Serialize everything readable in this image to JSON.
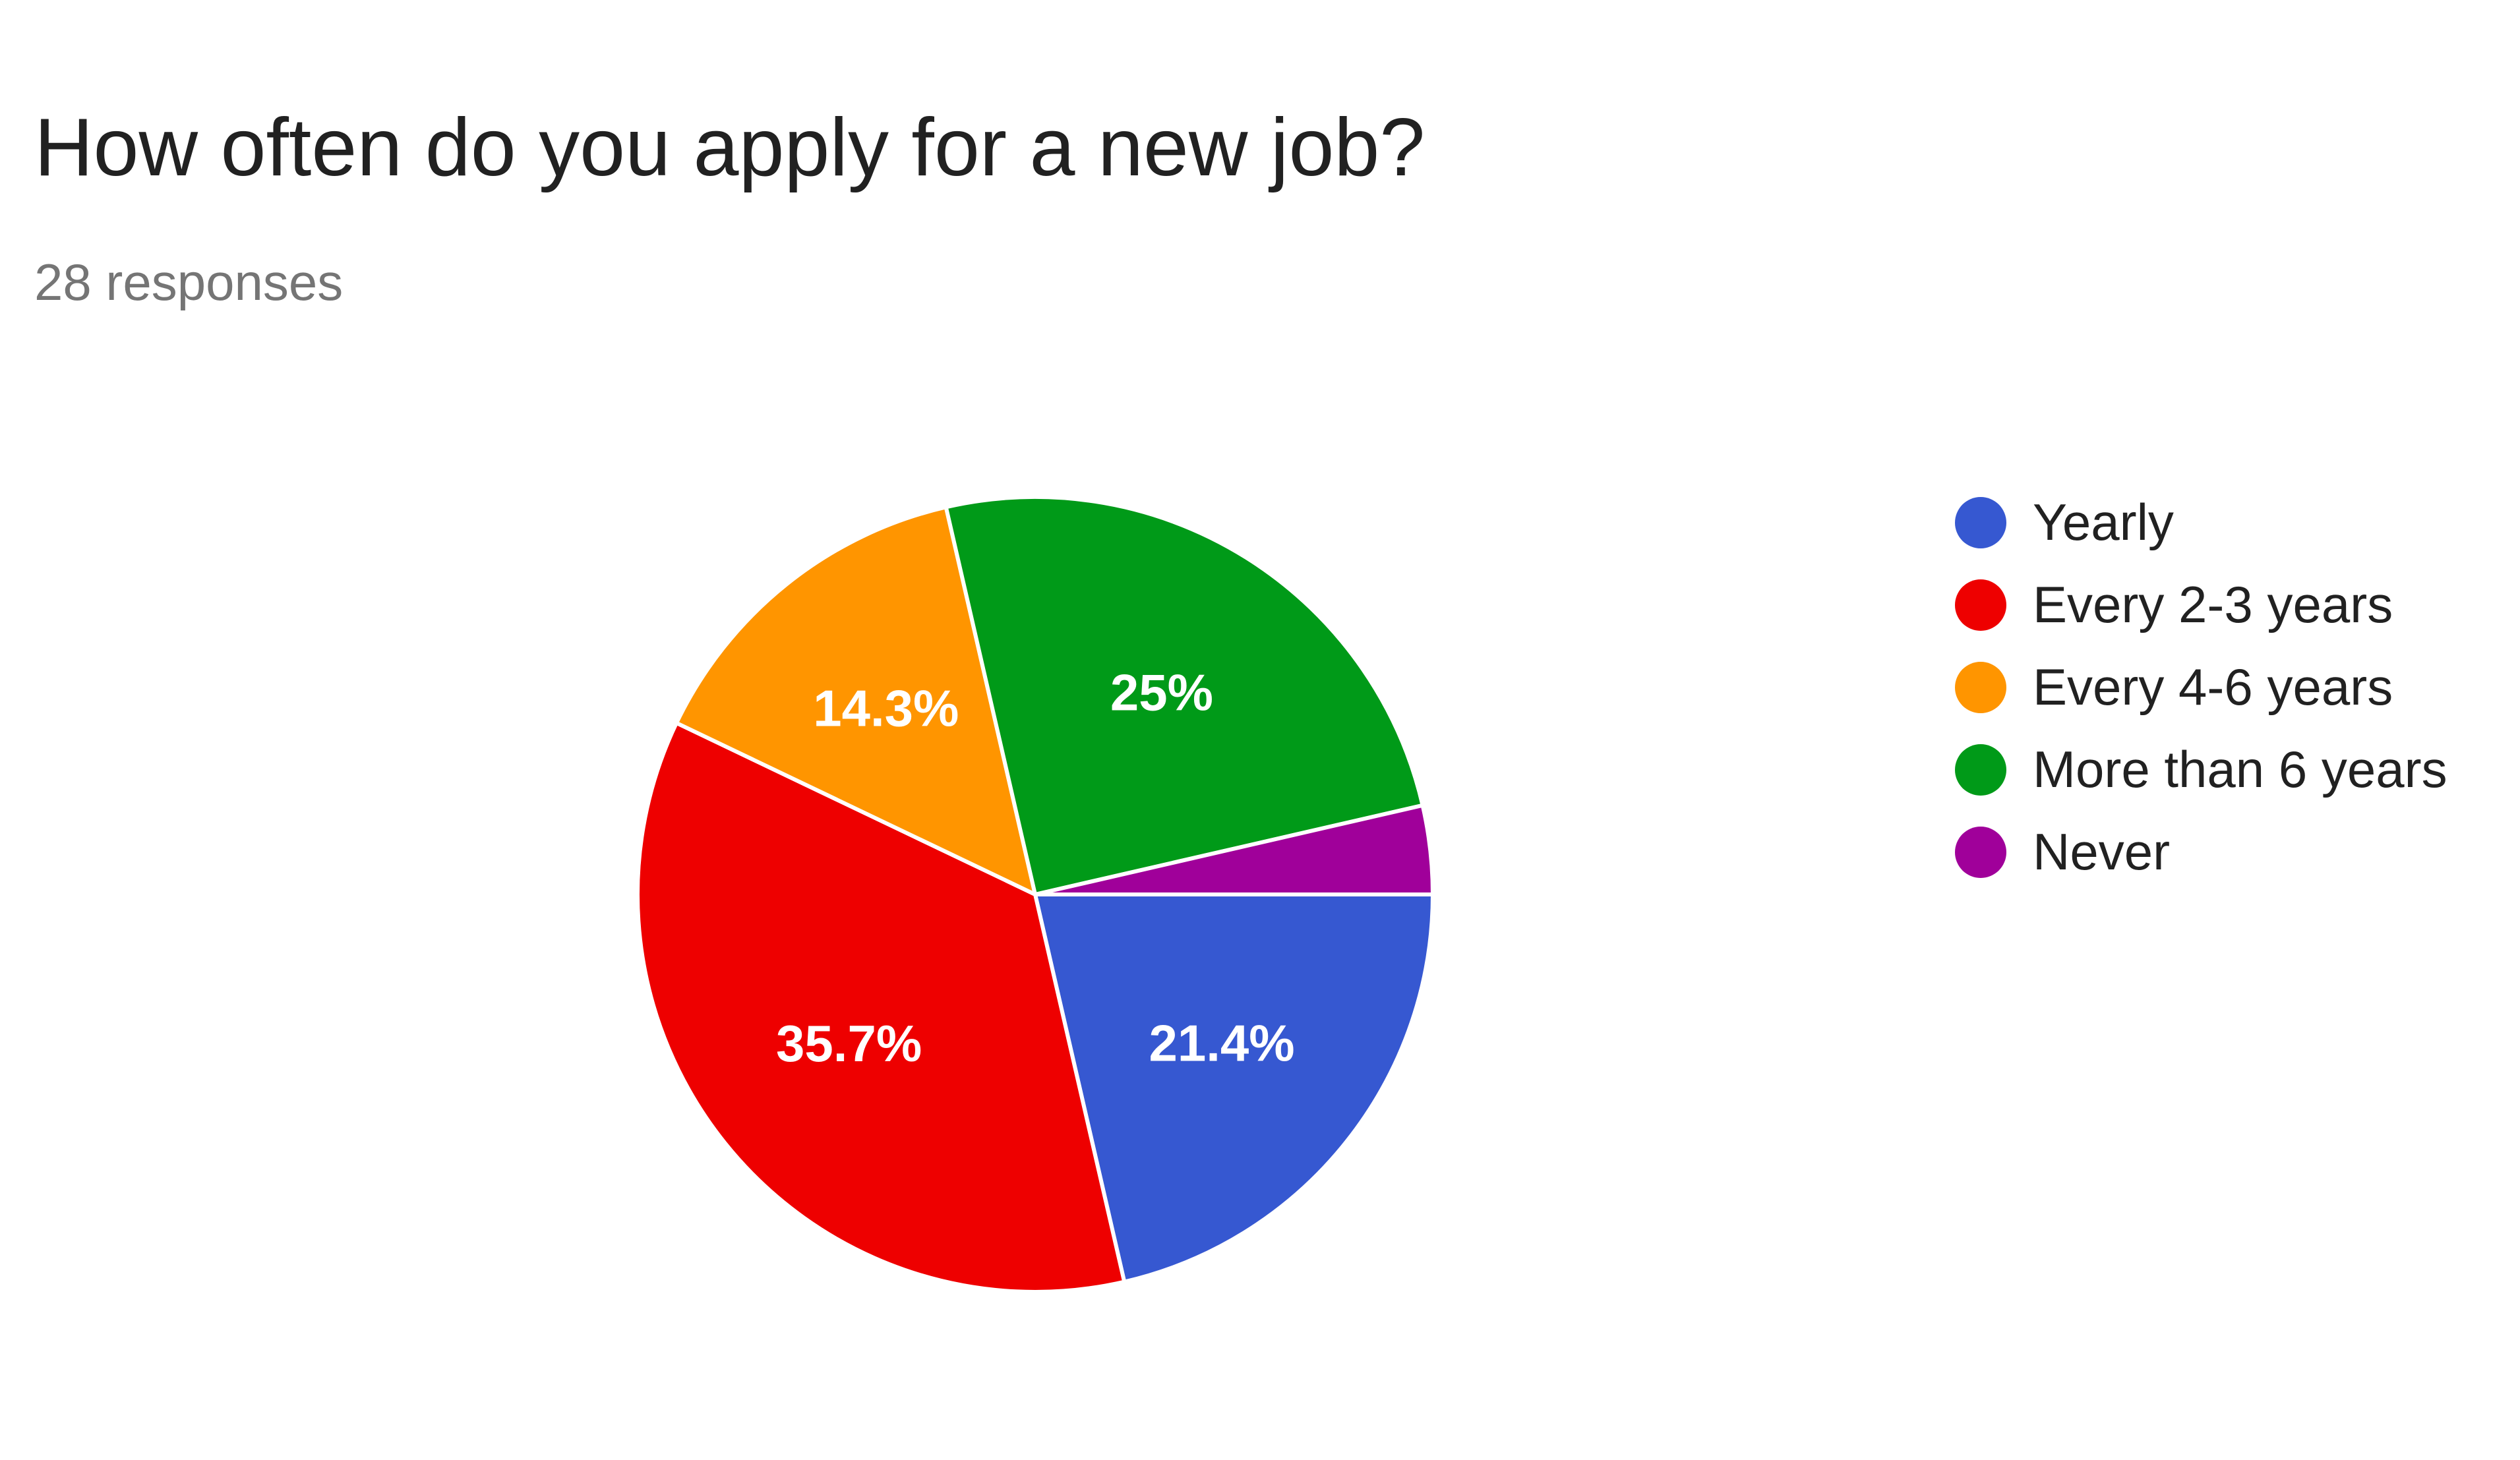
{
  "header": {
    "title": "How often do you apply for a new job?",
    "responses": "28 responses"
  },
  "chart_data": {
    "type": "pie",
    "title": "How often do you apply for a new job?",
    "categories": [
      "Yearly",
      "Every 2-3 years",
      "Every 4-6 years",
      "More than 6 years",
      "Never"
    ],
    "values": [
      21.4,
      35.7,
      14.3,
      25,
      3.6
    ],
    "labels": [
      "21.4%",
      "35.7%",
      "14.3%",
      "25%",
      ""
    ],
    "colors": [
      "#3658D1",
      "#EE0000",
      "#FF9500",
      "#009A18",
      "#A0009A"
    ],
    "legend_position": "right",
    "start_angle_deg": 0,
    "direction": "clockwise"
  }
}
